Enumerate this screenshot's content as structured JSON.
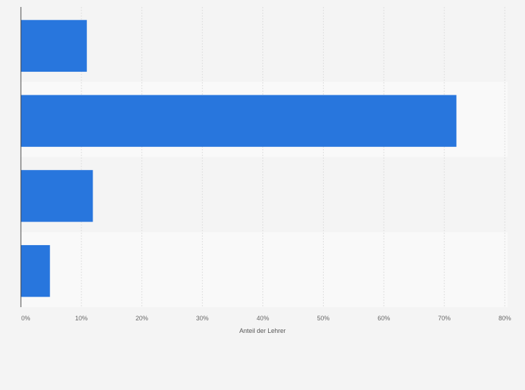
{
  "chart_data": {
    "type": "bar",
    "orientation": "horizontal",
    "categories": [
      "",
      "",
      "",
      ""
    ],
    "values": [
      10.9,
      72,
      11.9,
      4.8
    ],
    "xlabel": "Anteil der Lehrer",
    "xlim": [
      0,
      80
    ],
    "ticks": [
      "0%",
      "10%",
      "20%",
      "30%",
      "40%",
      "50%",
      "60%",
      "70%",
      "80%"
    ],
    "grid": true,
    "colors": {
      "bar": "#2876dd",
      "band_dark": "#f4f4f4",
      "band_light": "#f9f9f9",
      "grid": "#dddddd",
      "axis": "#444444"
    }
  }
}
